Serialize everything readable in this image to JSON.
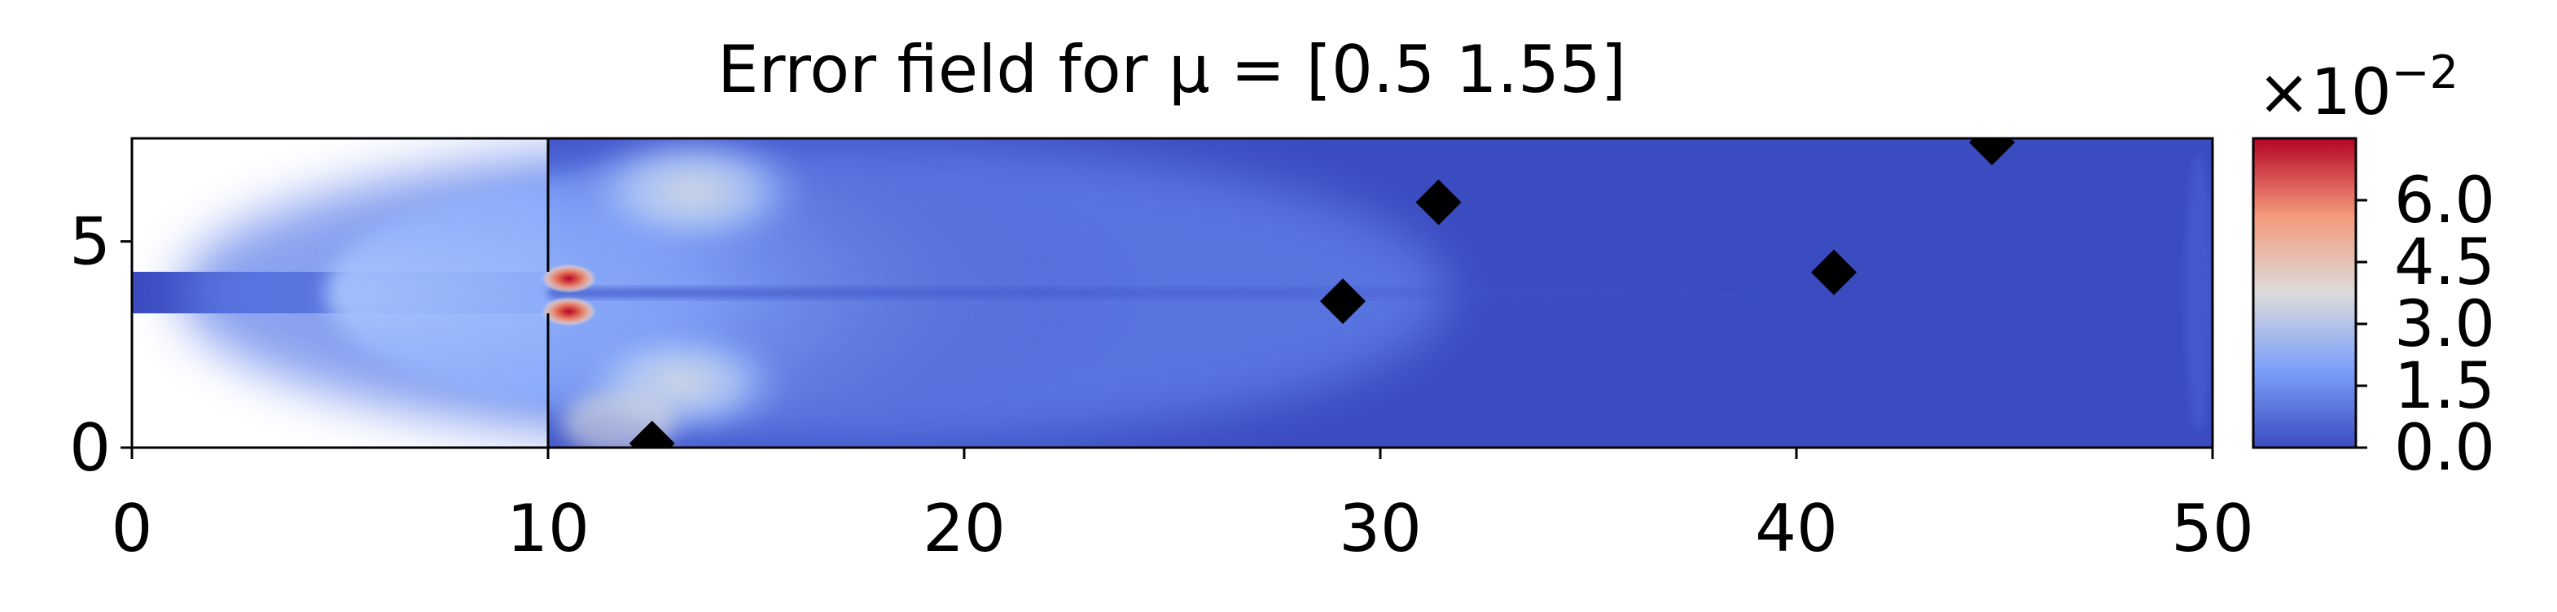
{
  "chart_data": {
    "type": "heatmap",
    "title": "Error field for μ = [0.5  1.55]",
    "xlabel": "",
    "ylabel": "",
    "xlim": [
      0,
      50
    ],
    "ylim": [
      0,
      7.5
    ],
    "xticks": [
      "0",
      "10",
      "20",
      "30",
      "40",
      "50"
    ],
    "yticks": [
      "0",
      "5"
    ],
    "grid": false,
    "colormap": "coolwarm",
    "colors": {
      "low": "#3b4cc0",
      "mid": "#dddcdc",
      "high": "#b40426",
      "marker": "#000000"
    },
    "colorbar": {
      "range": [
        0.0,
        7.5
      ],
      "ticks": [
        "0.0",
        "1.5",
        "3.0",
        "4.5",
        "6.0"
      ],
      "exponent_label": "×10−2"
    },
    "domain": {
      "inlet_channel": {
        "x": [
          0,
          10
        ],
        "y": [
          3.25,
          4.25
        ]
      },
      "chamber": {
        "x": [
          10,
          50
        ],
        "y": [
          0,
          7.5
        ]
      }
    },
    "error_hotspots": [
      {
        "x": 10.5,
        "y": 4.1,
        "value": 7.0
      },
      {
        "x": 10.5,
        "y": 3.3,
        "value": 7.0
      }
    ],
    "sensor_markers": [
      {
        "x": 12.5,
        "y": 0.1
      },
      {
        "x": 29.1,
        "y": 3.55
      },
      {
        "x": 31.4,
        "y": 5.95
      },
      {
        "x": 40.9,
        "y": 4.25
      },
      {
        "x": 44.7,
        "y": 7.4
      }
    ]
  }
}
